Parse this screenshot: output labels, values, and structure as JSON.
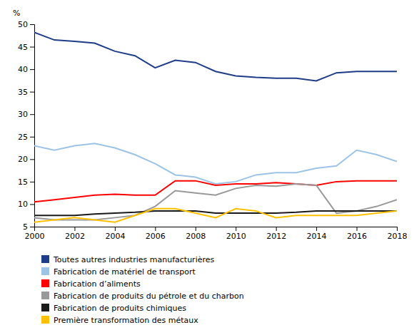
{
  "chart_data": {
    "type": "line",
    "ylabel": "%",
    "x": [
      2000,
      2001,
      2002,
      2003,
      2004,
      2005,
      2006,
      2007,
      2008,
      2009,
      2010,
      2011,
      2012,
      2013,
      2014,
      2015,
      2016,
      2017,
      2018
    ],
    "series": [
      {
        "name": "Toutes autres industries manufacturières",
        "color": "#1f3c88",
        "values": [
          48.2,
          46.5,
          46.2,
          45.8,
          44.0,
          43.0,
          40.3,
          42.0,
          41.5,
          39.5,
          38.5,
          38.2,
          38.0,
          38.0,
          37.4,
          39.2,
          39.5,
          39.5,
          39.5
        ]
      },
      {
        "name": "Fabrication de matériel de transport",
        "color": "#9dc3e6",
        "values": [
          23.0,
          22.0,
          23.0,
          23.5,
          22.5,
          21.0,
          19.0,
          16.5,
          16.0,
          14.5,
          15.0,
          16.5,
          17.0,
          17.0,
          18.0,
          18.5,
          22.0,
          21.0,
          19.5
        ]
      },
      {
        "name": "Fabrication d’aliments",
        "color": "#ff0000",
        "values": [
          10.5,
          11.0,
          11.5,
          12.0,
          12.2,
          12.0,
          12.0,
          15.2,
          15.2,
          14.2,
          14.5,
          14.5,
          14.8,
          14.5,
          14.2,
          15.0,
          15.2,
          15.2,
          15.2
        ]
      },
      {
        "name": "Fabrication de produits du pétrole et du charbon",
        "color": "#999999",
        "values": [
          7.0,
          6.5,
          6.5,
          6.5,
          7.0,
          7.5,
          9.5,
          13.0,
          12.5,
          12.0,
          13.5,
          14.2,
          14.0,
          14.5,
          14.2,
          8.0,
          8.5,
          9.5,
          11.0
        ]
      },
      {
        "name": "Fabrication de produits chimiques",
        "color": "#1a1a1a",
        "values": [
          7.5,
          7.5,
          7.5,
          7.8,
          8.0,
          8.2,
          8.5,
          8.5,
          8.5,
          8.0,
          8.0,
          8.0,
          8.0,
          8.2,
          8.5,
          8.5,
          8.5,
          8.5,
          8.5
        ]
      },
      {
        "name": "Première transformation des métaux",
        "color": "#ffc000",
        "values": [
          6.0,
          6.5,
          7.0,
          6.5,
          6.0,
          7.5,
          9.0,
          9.0,
          8.0,
          7.0,
          9.0,
          8.5,
          7.0,
          7.5,
          7.5,
          7.5,
          7.5,
          8.0,
          8.5
        ]
      }
    ],
    "xlim": [
      2000,
      2018
    ],
    "xticks": [
      2000,
      2002,
      2004,
      2006,
      2008,
      2010,
      2012,
      2014,
      2016,
      2018
    ],
    "ylim": [
      5,
      50
    ],
    "yticks": [
      5,
      10,
      15,
      20,
      25,
      30,
      35,
      40,
      45,
      50
    ],
    "grid": false,
    "legend": "bottom"
  }
}
